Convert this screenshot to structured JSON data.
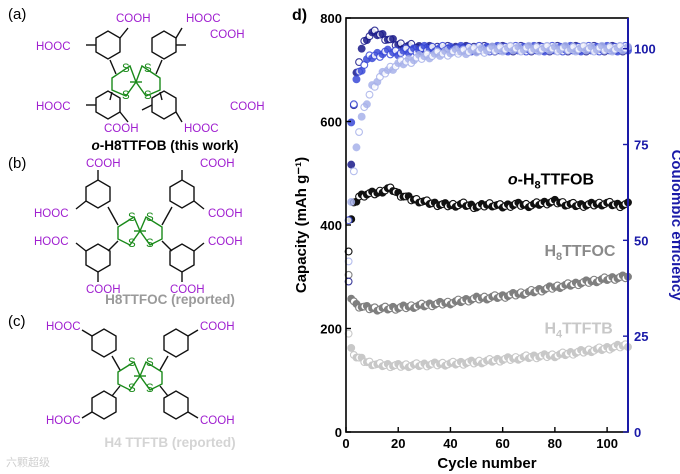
{
  "panels": {
    "a": {
      "label": "(a)",
      "caption_prefix": "o",
      "caption_rest": "-H8TTFOB (this work)",
      "caption_color": "#000000"
    },
    "b": {
      "label": "(b)",
      "caption": "H8TTFOC (reported)",
      "caption_color": "#9a9a9a"
    },
    "c": {
      "label": "(c)",
      "caption": "H4 TTFTB (reported)",
      "caption_color": "#d4d4d4"
    },
    "d": {
      "label": "d)"
    }
  },
  "chem": {
    "acid": "COOH",
    "acid_rev": "HOOC",
    "sulfur": "S"
  },
  "watermark": "六颗超级",
  "chart_data": {
    "type": "scatter",
    "xlabel": "Cycle number",
    "ylabel_left": "Capacity (mAh g⁻¹)",
    "ylabel_right": "Coulombic efficiency",
    "xlim": [
      0,
      108
    ],
    "ylim_left": [
      0,
      800
    ],
    "ylim_right": [
      0,
      108
    ],
    "xticks": [
      0,
      20,
      40,
      60,
      80,
      100
    ],
    "yticks_left": [
      0,
      200,
      400,
      600,
      800
    ],
    "yticks_right": [
      0,
      25,
      50,
      75,
      100
    ],
    "right_axis_color": "#1a1aa8",
    "series": [
      {
        "name": "o-H8TTFOB",
        "axis": "left",
        "color": "#111111",
        "x": [
          1,
          2,
          3,
          5,
          8,
          12,
          16,
          18,
          20,
          25,
          30,
          35,
          40,
          45,
          50,
          55,
          60,
          65,
          70,
          75,
          80,
          85,
          90,
          95,
          100,
          105,
          108
        ],
        "y": [
          350,
          410,
          440,
          455,
          460,
          462,
          470,
          468,
          460,
          450,
          445,
          440,
          438,
          440,
          435,
          440,
          436,
          440,
          438,
          442,
          445,
          440,
          438,
          440,
          442,
          438,
          440
        ]
      },
      {
        "name": "H8TTFOC",
        "axis": "left",
        "color": "#7f7f7f",
        "x": [
          1,
          2,
          4,
          8,
          12,
          20,
          30,
          40,
          50,
          60,
          70,
          80,
          90,
          100,
          108
        ],
        "y": [
          300,
          260,
          245,
          240,
          238,
          240,
          245,
          250,
          258,
          262,
          270,
          280,
          288,
          296,
          300
        ]
      },
      {
        "name": "H4TTFTB",
        "axis": "left",
        "color": "#c8c8c8",
        "x": [
          1,
          2,
          4,
          8,
          12,
          20,
          30,
          40,
          50,
          60,
          70,
          80,
          90,
          100,
          108
        ],
        "y": [
          190,
          160,
          145,
          135,
          130,
          128,
          130,
          132,
          135,
          140,
          145,
          148,
          155,
          162,
          168
        ]
      },
      {
        "name": "o-H8TTFOB CE",
        "axis": "right",
        "color": "#1a1a8a",
        "x": [
          1,
          2,
          3,
          4,
          5,
          6,
          8,
          10,
          12,
          15,
          20,
          30,
          50,
          70,
          90,
          108
        ],
        "y": [
          40,
          70,
          85,
          93,
          97,
          100,
          103,
          104,
          104,
          103,
          101,
          100,
          100,
          100,
          100,
          100
        ]
      },
      {
        "name": "H8TTFOC CE",
        "axis": "right",
        "color": "#3a4ad8",
        "x": [
          1,
          2,
          4,
          6,
          8,
          10,
          15,
          20,
          30,
          50,
          70,
          90,
          108
        ],
        "y": [
          55,
          80,
          92,
          95,
          97,
          98,
          99,
          99,
          100,
          100,
          100,
          100,
          100
        ]
      },
      {
        "name": "H4TTFTB CE",
        "axis": "right",
        "color": "#a8b2ea",
        "x": [
          1,
          2,
          4,
          6,
          8,
          10,
          15,
          20,
          30,
          40,
          60,
          80,
          108
        ],
        "y": [
          45,
          60,
          75,
          82,
          86,
          90,
          94,
          96,
          98,
          99,
          100,
          100,
          100
        ]
      }
    ],
    "series_labels": [
      {
        "prefix": "o",
        "main": "-H",
        "sub": "8",
        "rest": "TTFOB",
        "color": "#000000"
      },
      {
        "prefix": "",
        "main": "H",
        "sub": "8",
        "rest": "TTFOC",
        "color": "#8a8a8a"
      },
      {
        "prefix": "",
        "main": "H",
        "sub": "4",
        "rest": "TTFTB",
        "color": "#c8c8c8"
      }
    ]
  }
}
